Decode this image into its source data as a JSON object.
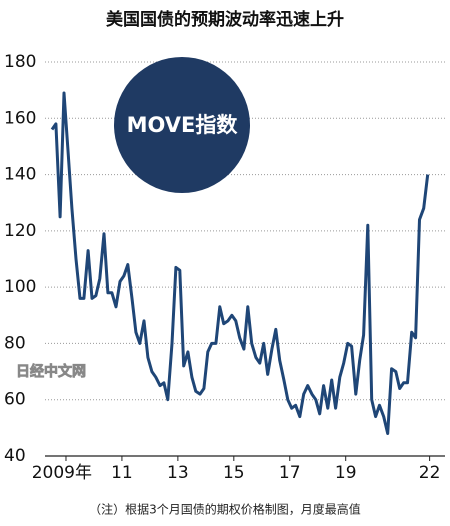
{
  "chart_data": {
    "type": "line",
    "title": "美国国债的预期波动率迅速上升",
    "annotation": "MOVE指数",
    "watermark": "日经中文网",
    "note": "（注）根据3个月国债的期权价格制图，月度最高值",
    "color": "#1f4677",
    "grid": true,
    "ylim": [
      40,
      180
    ],
    "yticks": [
      40,
      60,
      80,
      100,
      120,
      140,
      160,
      180
    ],
    "xlim": [
      2008.25,
      2022.55
    ],
    "xticks": [
      {
        "value": 2009,
        "label": "2009年"
      },
      {
        "value": 2011,
        "label": "11"
      },
      {
        "value": 2013,
        "label": "13"
      },
      {
        "value": 2015,
        "label": "15"
      },
      {
        "value": 2017,
        "label": "17"
      },
      {
        "value": 2019,
        "label": "19"
      },
      {
        "value": 2022,
        "label": "22"
      }
    ],
    "x": [
      2008.5,
      2008.64,
      2008.79,
      2008.93,
      2009.07,
      2009.21,
      2009.36,
      2009.5,
      2009.64,
      2009.79,
      2009.93,
      2010.07,
      2010.21,
      2010.36,
      2010.5,
      2010.64,
      2010.79,
      2010.93,
      2011.07,
      2011.21,
      2011.36,
      2011.5,
      2011.64,
      2011.79,
      2011.93,
      2012.07,
      2012.21,
      2012.36,
      2012.5,
      2012.64,
      2012.79,
      2012.93,
      2013.07,
      2013.21,
      2013.36,
      2013.5,
      2013.64,
      2013.79,
      2013.93,
      2014.07,
      2014.21,
      2014.36,
      2014.5,
      2014.64,
      2014.79,
      2014.93,
      2015.07,
      2015.21,
      2015.36,
      2015.5,
      2015.64,
      2015.79,
      2015.93,
      2016.07,
      2016.21,
      2016.36,
      2016.5,
      2016.64,
      2016.79,
      2016.93,
      2017.07,
      2017.21,
      2017.36,
      2017.5,
      2017.64,
      2017.79,
      2017.93,
      2018.07,
      2018.21,
      2018.36,
      2018.5,
      2018.64,
      2018.79,
      2018.93,
      2019.07,
      2019.21,
      2019.36,
      2019.5,
      2019.64,
      2019.79,
      2019.93,
      2020.07,
      2020.21,
      2020.36,
      2020.5,
      2020.64,
      2020.79,
      2020.93,
      2021.07,
      2021.21,
      2021.36,
      2021.5,
      2021.64,
      2021.79,
      2021.93
    ],
    "values": [
      156,
      158,
      125,
      169,
      149,
      128,
      110,
      96,
      96,
      113,
      96,
      97,
      103,
      119,
      98,
      98,
      93,
      102,
      104,
      108,
      96,
      84,
      80,
      88,
      75,
      70,
      68,
      65,
      66,
      60,
      80,
      107,
      106,
      72,
      77,
      68,
      63,
      62,
      64,
      77,
      80,
      80,
      93,
      87,
      88,
      90,
      88,
      82,
      78,
      93,
      80,
      75,
      73,
      80,
      69,
      78,
      85,
      74,
      67,
      60,
      57,
      58,
      54,
      62,
      65,
      62,
      60,
      55,
      65,
      57,
      67,
      57,
      68,
      73,
      80,
      79,
      62,
      74,
      83,
      122,
      60,
      54,
      58,
      54,
      48,
      71,
      70,
      64,
      66,
      66,
      84,
      82,
      124,
      128,
      140
    ]
  }
}
